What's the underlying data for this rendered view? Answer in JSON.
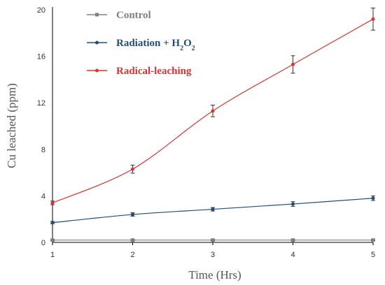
{
  "chart_data": {
    "type": "line",
    "xlabel": "Time (Hrs)",
    "ylabel": "Cu leached (ppm)",
    "x": [
      1,
      2,
      3,
      4,
      5
    ],
    "xlim": [
      1,
      5
    ],
    "ylim": [
      0,
      20
    ],
    "yticks": [
      0,
      4,
      8,
      12,
      16,
      20
    ],
    "grid": false,
    "legend_position": "top-left",
    "series": [
      {
        "name": "Control",
        "name_parts": [
          "Control"
        ],
        "color": "#7f7f7f",
        "marker": "square",
        "values": [
          0.2,
          0.2,
          0.2,
          0.2,
          0.2
        ],
        "errors": [
          0.05,
          0.05,
          0.05,
          0.05,
          0.05
        ]
      },
      {
        "name": "Radiation + H2O2",
        "name_parts": [
          "Radiation + H",
          "2",
          "O",
          "2"
        ],
        "color": "#1f4e79",
        "marker": "circle",
        "values": [
          1.7,
          2.4,
          2.85,
          3.3,
          3.8
        ],
        "errors": [
          0.1,
          0.15,
          0.15,
          0.2,
          0.2
        ]
      },
      {
        "name": "Radical-leaching",
        "name_parts": [
          "Radical-leaching"
        ],
        "color": "#e03030",
        "marker": "circle",
        "values": [
          3.4,
          6.3,
          11.3,
          15.3,
          19.2
        ],
        "errors": [
          0.15,
          0.35,
          0.5,
          0.75,
          0.95
        ]
      }
    ]
  }
}
